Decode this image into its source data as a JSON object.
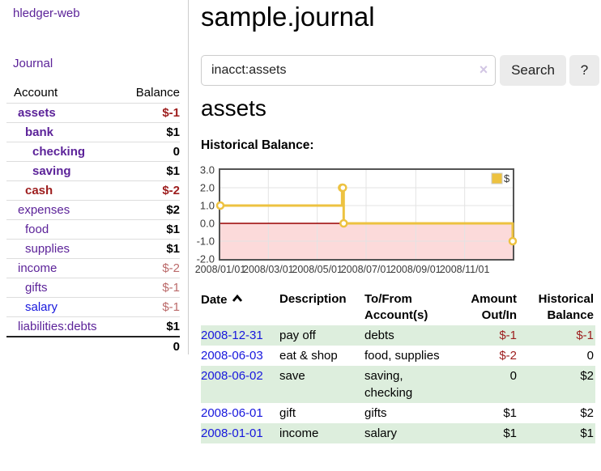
{
  "app": {
    "brand": "hledger-web",
    "nav": {
      "journal": "Journal"
    }
  },
  "sidebar": {
    "headers": {
      "account": "Account",
      "balance": "Balance"
    },
    "accounts": [
      {
        "name": "assets",
        "balance": "$-1"
      },
      {
        "name": "bank",
        "balance": "$1"
      },
      {
        "name": "checking",
        "balance": "0"
      },
      {
        "name": "saving",
        "balance": "$1"
      },
      {
        "name": "cash",
        "balance": "$-2"
      },
      {
        "name": "expenses",
        "balance": "$2"
      },
      {
        "name": "food",
        "balance": "$1"
      },
      {
        "name": "supplies",
        "balance": "$1"
      },
      {
        "name": "income",
        "balance": "$-2"
      },
      {
        "name": "gifts",
        "balance": "$-1"
      },
      {
        "name": "salary",
        "balance": "$-1"
      },
      {
        "name": "liabilities:debts",
        "balance": "$1"
      }
    ],
    "total": "0"
  },
  "main": {
    "title": "sample.journal",
    "search": {
      "value": "inacct:assets",
      "clear_icon": "×",
      "button_label": "Search",
      "help_label": "?"
    },
    "account_heading": "assets",
    "chart_label": "Historical Balance:"
  },
  "chart_data": {
    "type": "line",
    "title": "Historical Balance",
    "series": [
      {
        "name": "$",
        "color": "#edc240",
        "steps": true,
        "points": [
          [
            "2008-01-01",
            1
          ],
          [
            "2008-06-01",
            2
          ],
          [
            "2008-06-02",
            2
          ],
          [
            "2008-06-03",
            0
          ],
          [
            "2008-12-31",
            -1
          ]
        ]
      }
    ],
    "ylim": [
      -2,
      3
    ],
    "yticks": [
      "3.0",
      "2.0",
      "1.0",
      "0.0",
      "-1.0",
      "-2.0"
    ],
    "xticks": [
      "2008/01/01",
      "2008/03/01",
      "2008/05/01",
      "2008/07/01",
      "2008/09/01",
      "2008/11/01"
    ],
    "xrange": [
      "2008-01-01",
      "2008-12-31"
    ],
    "grid": true,
    "legend_position": "top-right",
    "legend": "$",
    "negative_region_color": "#fcdada",
    "zero_line_color": "#990000",
    "border_color": "#545454"
  },
  "register": {
    "headers": [
      "Date",
      "Description",
      "To/From Account(s)",
      "Amount Out/In",
      "Historical Balance"
    ],
    "rows": [
      {
        "date": "2008-12-31",
        "description": "pay off",
        "accounts": "debts",
        "amount": "$-1",
        "balance": "$-1"
      },
      {
        "date": "2008-06-03",
        "description": "eat & shop",
        "accounts": "food, supplies",
        "amount": "$-2",
        "balance": "0"
      },
      {
        "date": "2008-06-02",
        "description": "save",
        "accounts": "saving,\nchecking",
        "amount": "0",
        "balance": "$2"
      },
      {
        "date": "2008-06-01",
        "description": "gift",
        "accounts": "gifts",
        "amount": "$1",
        "balance": "$2"
      },
      {
        "date": "2008-01-01",
        "description": "income",
        "accounts": "salary",
        "amount": "$1",
        "balance": "$1"
      }
    ]
  }
}
